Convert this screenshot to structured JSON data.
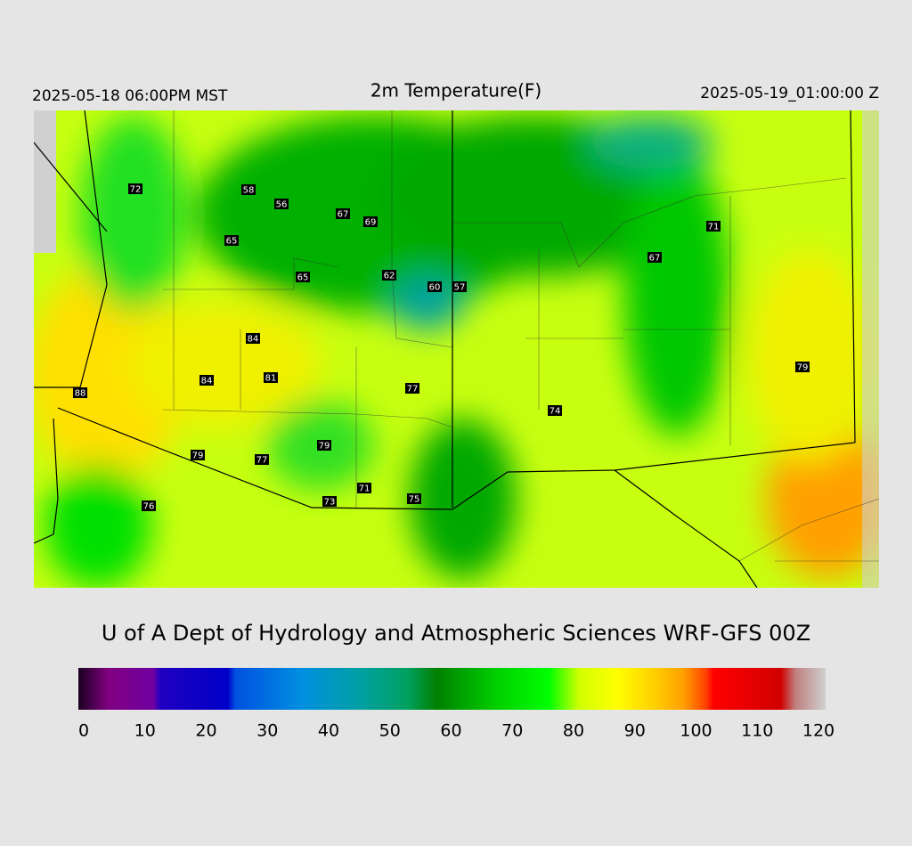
{
  "header": {
    "title": "2m Temperature(F)",
    "valid_local": "2025-05-18 06:00PM MST",
    "valid_utc": "2025-05-19_01:00:00 Z"
  },
  "stations": [
    72,
    58,
    56,
    67,
    69,
    65,
    65,
    62,
    60,
    57,
    71,
    67,
    84,
    84,
    81,
    88,
    77,
    79,
    74,
    79,
    79,
    77,
    71,
    73,
    75,
    76
  ],
  "footer": "U of A Dept of Hydrology and Atmospheric Sciences WRF-GFS 00Z",
  "colorbar": {
    "range": [
      0,
      120
    ],
    "ticks": [
      0,
      10,
      20,
      30,
      40,
      50,
      60,
      70,
      80,
      90,
      100,
      110,
      120
    ]
  }
}
